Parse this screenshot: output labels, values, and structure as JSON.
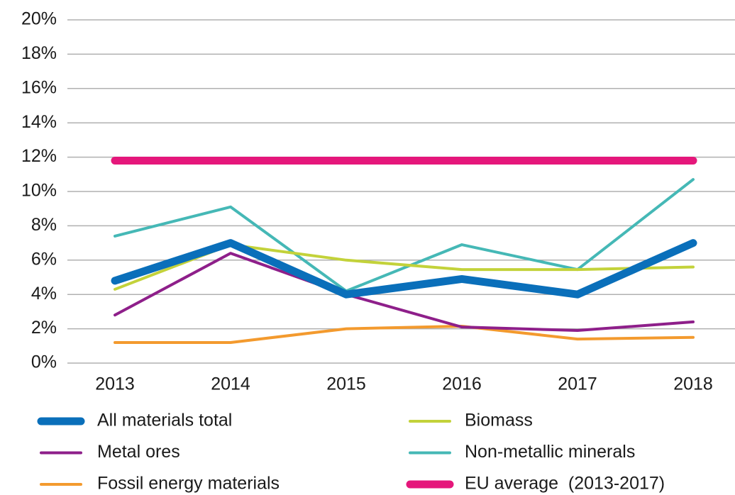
{
  "chart_data": {
    "type": "line",
    "categories": [
      "2013",
      "2014",
      "2015",
      "2016",
      "2017",
      "2018"
    ],
    "ylim": [
      0,
      20
    ],
    "yticks": [
      {
        "value": 0,
        "label": "0%"
      },
      {
        "value": 2,
        "label": "2%"
      },
      {
        "value": 4,
        "label": "4%"
      },
      {
        "value": 6,
        "label": "6%"
      },
      {
        "value": 8,
        "label": "8%"
      },
      {
        "value": 10,
        "label": "10%"
      },
      {
        "value": 12,
        "label": "12%"
      },
      {
        "value": 14,
        "label": "14%"
      },
      {
        "value": 16,
        "label": "16%"
      },
      {
        "value": 18,
        "label": "18%"
      },
      {
        "value": 20,
        "label": "20%"
      }
    ],
    "grid": true,
    "legend": "bottom",
    "series": [
      {
        "name": "All materials total",
        "color": "#0a6fba",
        "linewidth": 11,
        "values": [
          4.8,
          7.0,
          4.0,
          4.9,
          4.0,
          7.0
        ]
      },
      {
        "name": "Biomass",
        "color": "#c3d23a",
        "linewidth": 4,
        "values": [
          4.3,
          6.9,
          6.0,
          5.45,
          5.45,
          5.6
        ]
      },
      {
        "name": "Metal ores",
        "color": "#8e1f8a",
        "linewidth": 4,
        "values": [
          2.8,
          6.4,
          4.0,
          2.1,
          1.9,
          2.4
        ]
      },
      {
        "name": "Non-metallic minerals",
        "color": "#45b8b6",
        "linewidth": 4,
        "values": [
          7.4,
          9.1,
          4.2,
          6.9,
          5.45,
          10.7
        ]
      },
      {
        "name": "Fossil energy materials",
        "color": "#f39a2e",
        "linewidth": 4,
        "values": [
          1.2,
          1.2,
          2.0,
          2.15,
          1.4,
          1.5
        ]
      },
      {
        "name": "EU average  (2013-2017)",
        "color": "#e5177b",
        "linewidth": 11,
        "values": [
          11.8,
          11.8,
          11.8,
          11.8,
          11.8,
          11.8
        ]
      }
    ]
  }
}
